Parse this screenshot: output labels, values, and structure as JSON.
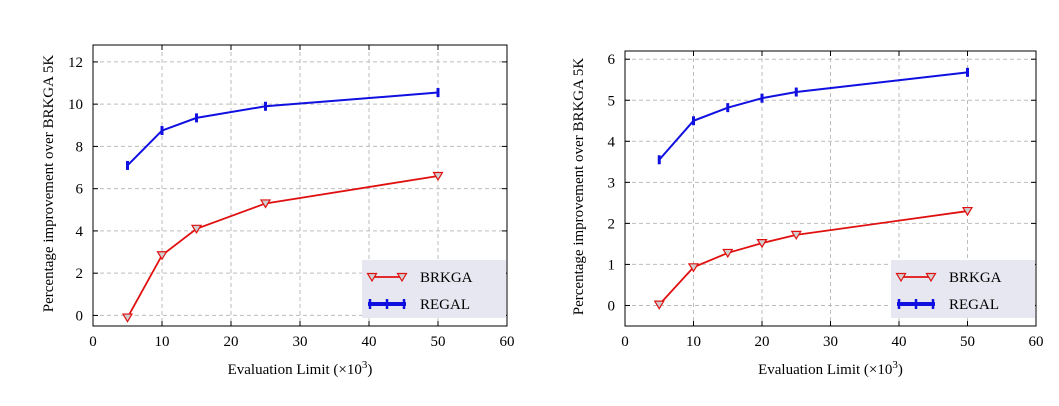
{
  "colors": {
    "brkga": "#e01010",
    "regal": "#1010e0",
    "marker_fill": "#cfcfcf"
  },
  "chart_data": [
    {
      "type": "line",
      "xlabel": "Evaluation Limit (×10³)",
      "ylabel": "Percentage improvement over BRKGA 5K",
      "xlim": [
        0,
        60
      ],
      "ylim": [
        -0.5,
        12.8
      ],
      "xticks": [
        0,
        10,
        20,
        30,
        40,
        50,
        60
      ],
      "yticks": [
        0,
        2,
        4,
        6,
        8,
        10,
        12
      ],
      "grid": true,
      "legend_position": "lower-right",
      "series": [
        {
          "name": "BRKGA",
          "marker": "triangle-down",
          "x": [
            5,
            10,
            15,
            25,
            50
          ],
          "y": [
            -0.1,
            2.85,
            4.1,
            5.3,
            6.6
          ]
        },
        {
          "name": "REGAL",
          "marker": "errorbar",
          "x": [
            5,
            10,
            15,
            25,
            50
          ],
          "y": [
            7.1,
            8.75,
            9.35,
            9.9,
            10.55
          ]
        }
      ]
    },
    {
      "type": "line",
      "xlabel": "Evaluation Limit (×10³)",
      "ylabel": "Percentage improvement over BRKGA 5K",
      "xlim": [
        0,
        60
      ],
      "ylim": [
        -0.5,
        6.2
      ],
      "xticks": [
        0,
        10,
        20,
        30,
        40,
        50,
        60
      ],
      "yticks": [
        0,
        1,
        2,
        3,
        4,
        5,
        6
      ],
      "grid": true,
      "legend_position": "lower-right",
      "series": [
        {
          "name": "BRKGA",
          "marker": "triangle-down",
          "x": [
            5,
            10,
            15,
            20,
            25,
            50
          ],
          "y": [
            0.02,
            0.93,
            1.28,
            1.52,
            1.72,
            2.3
          ]
        },
        {
          "name": "REGAL",
          "marker": "errorbar",
          "x": [
            5,
            10,
            15,
            20,
            25,
            50
          ],
          "y": [
            3.55,
            4.5,
            4.82,
            5.05,
            5.2,
            5.68
          ]
        }
      ]
    }
  ]
}
